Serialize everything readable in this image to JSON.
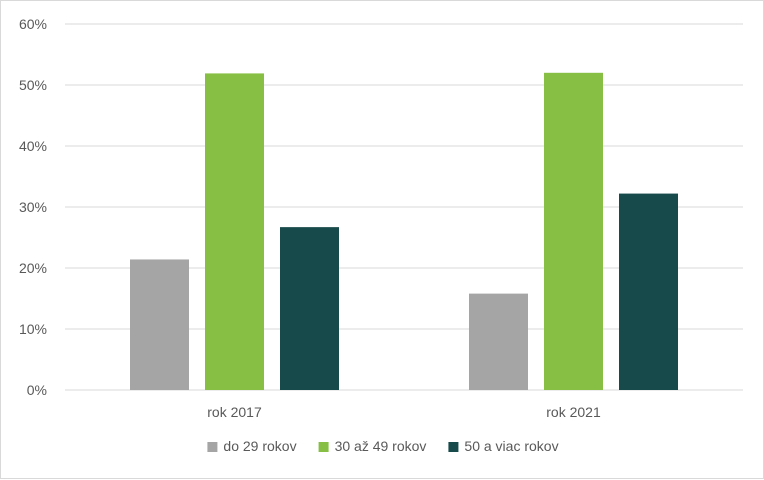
{
  "chart_data": {
    "type": "bar",
    "title": "",
    "xlabel": "",
    "ylabel": "",
    "categories": [
      "rok 2017",
      "rok 2021"
    ],
    "ylim": [
      0,
      60
    ],
    "yticks": [
      0,
      10,
      20,
      30,
      40,
      50,
      60
    ],
    "ytick_format": "%",
    "grid": true,
    "legend_position": "bottom",
    "series": [
      {
        "name": "do 29 rokov",
        "color": "#a5a5a5",
        "values": [
          21.4,
          15.8
        ]
      },
      {
        "name": "30 až 49 rokov",
        "color": "#86bf44",
        "values": [
          51.9,
          52.0
        ]
      },
      {
        "name": "50 a viac rokov",
        "color": "#174a4a",
        "values": [
          26.7,
          32.2
        ]
      }
    ]
  }
}
